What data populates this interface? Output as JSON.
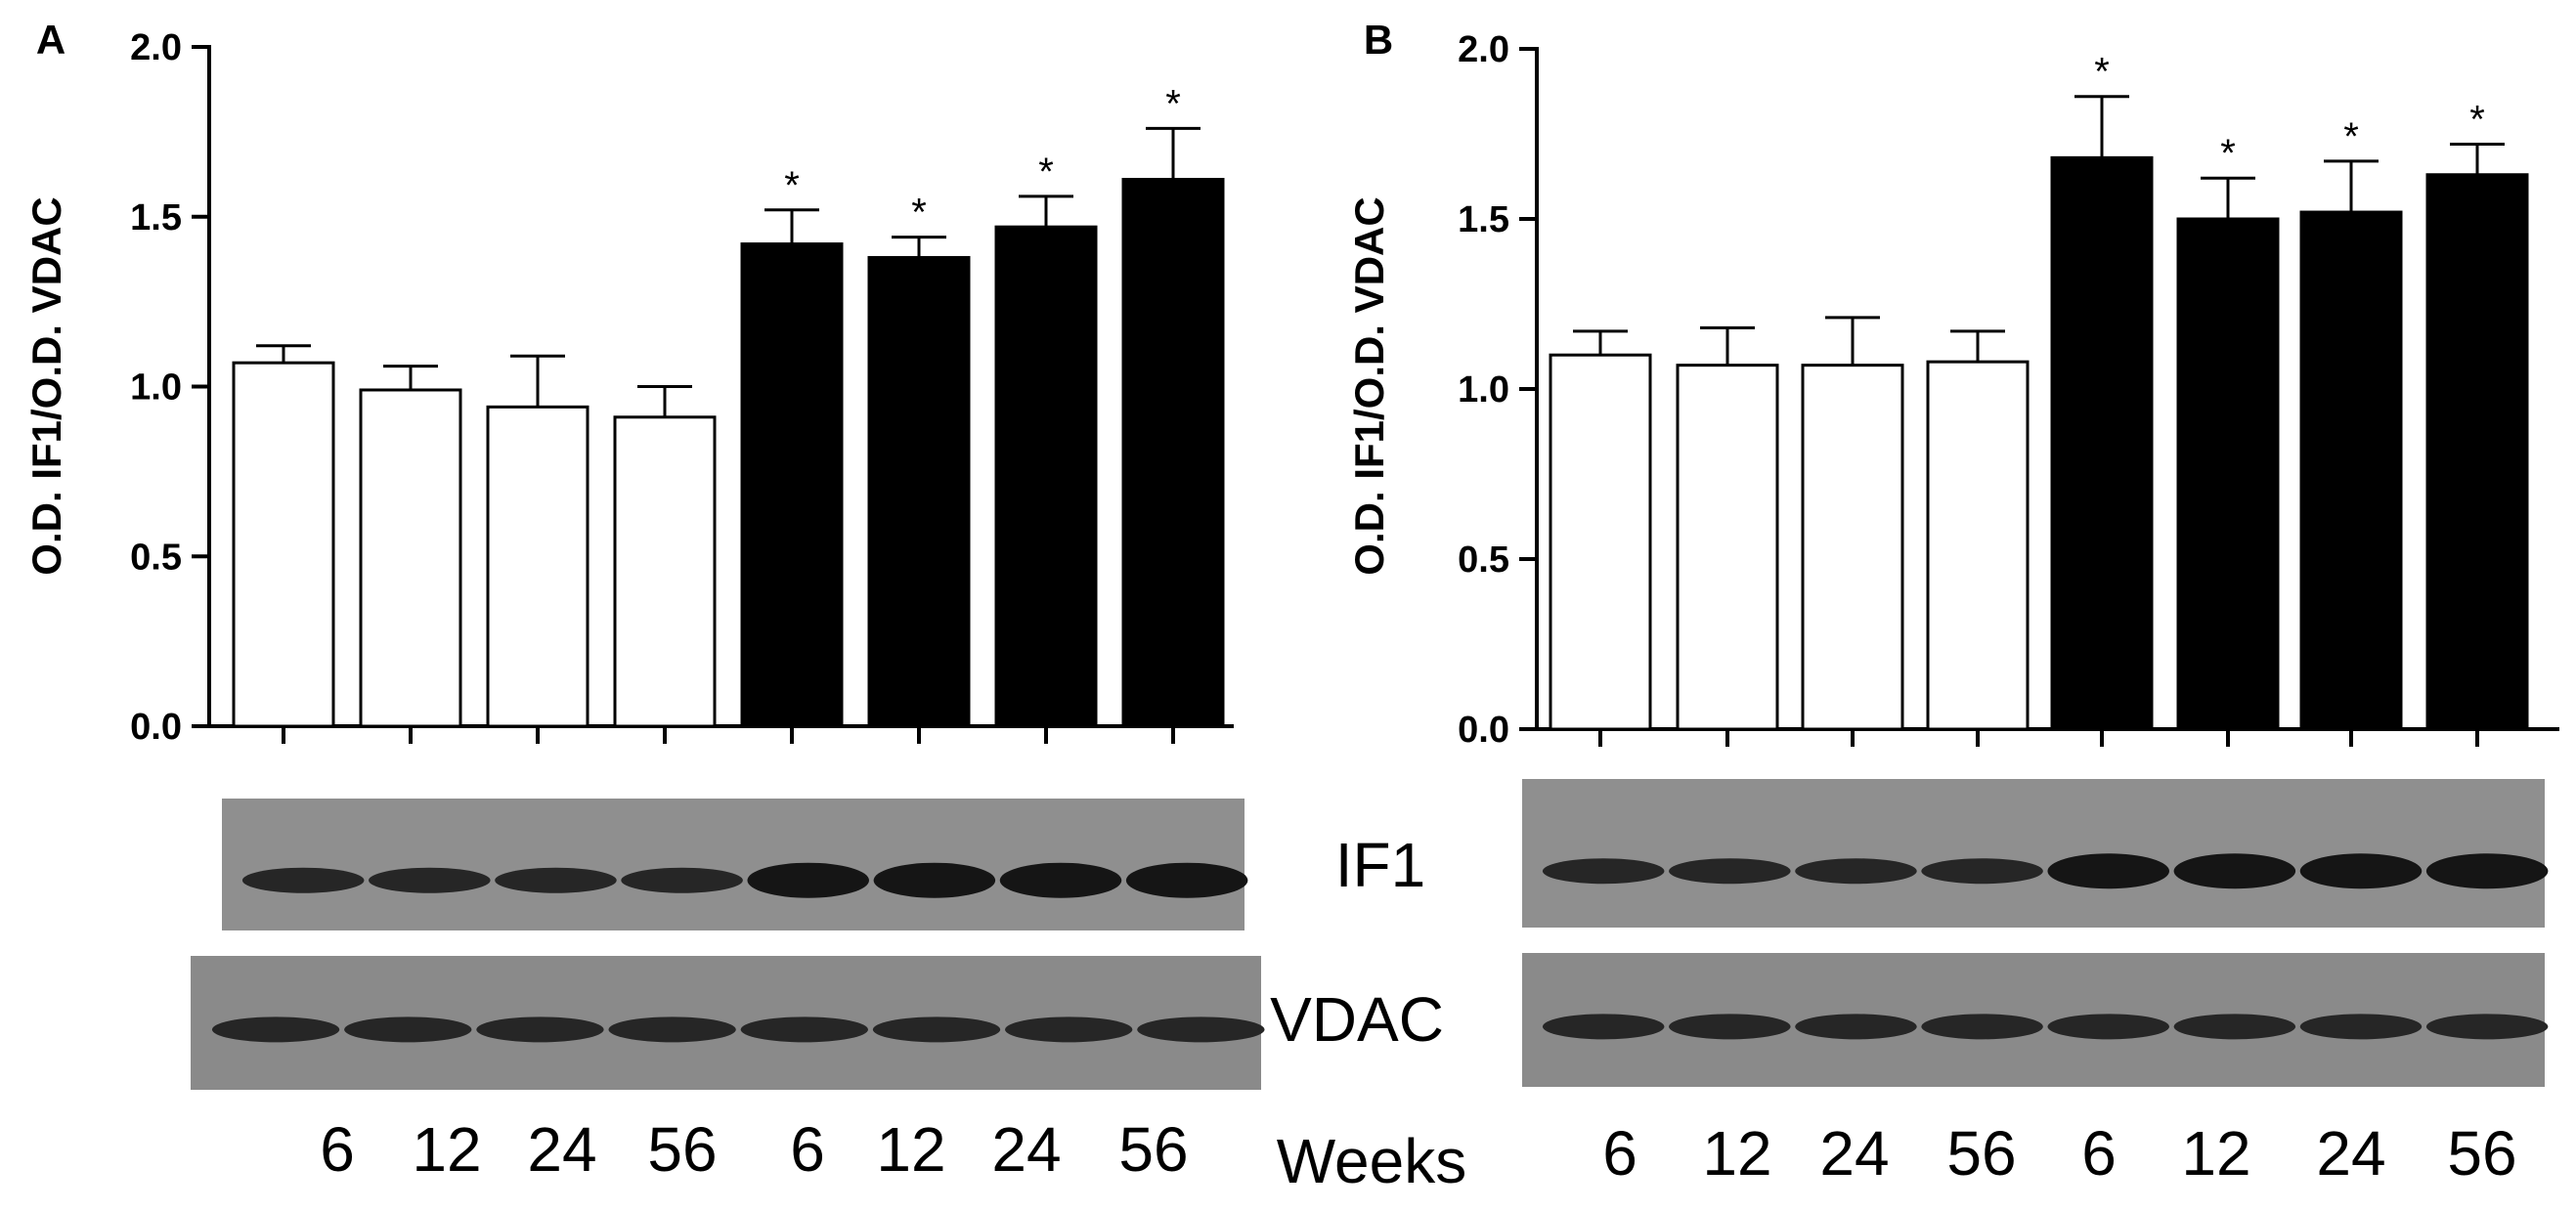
{
  "chart_data": [
    {
      "panel_label": "A",
      "type": "bar",
      "ylabel": "O.D. IF1/O.D. VDAC",
      "ylim": [
        0,
        2.0
      ],
      "yticks": [
        "0.0",
        "0.5",
        "1.0",
        "1.5",
        "2.0"
      ],
      "ytick_values": [
        0,
        0.5,
        1.0,
        1.5,
        2.0
      ],
      "categories": [
        "6",
        "12",
        "24",
        "56",
        "6",
        "12",
        "24",
        "56"
      ],
      "values": [
        1.07,
        0.99,
        0.94,
        0.91,
        1.42,
        1.38,
        1.47,
        1.61
      ],
      "error": [
        0.05,
        0.07,
        0.15,
        0.09,
        0.1,
        0.06,
        0.09,
        0.15
      ],
      "bar_fill": [
        "#ffffff",
        "#ffffff",
        "#ffffff",
        "#ffffff",
        "#000000",
        "#000000",
        "#000000",
        "#000000"
      ],
      "significance": [
        "",
        "",
        "",
        "",
        "*",
        "*",
        "*",
        "*"
      ],
      "blot_labels": [
        "IF1",
        "VDAC"
      ],
      "xlabel": "Weeks"
    },
    {
      "panel_label": "B",
      "type": "bar",
      "ylabel": "O.D. IF1/O.D. VDAC",
      "ylim": [
        0,
        2.0
      ],
      "yticks": [
        "0.0",
        "0.5",
        "1.0",
        "1.5",
        "2.0"
      ],
      "ytick_values": [
        0,
        0.5,
        1.0,
        1.5,
        2.0
      ],
      "categories": [
        "6",
        "12",
        "24",
        "56",
        "6",
        "12",
        "24",
        "56"
      ],
      "values": [
        1.1,
        1.07,
        1.07,
        1.08,
        1.68,
        1.5,
        1.52,
        1.63
      ],
      "error": [
        0.07,
        0.11,
        0.14,
        0.09,
        0.18,
        0.12,
        0.15,
        0.09
      ],
      "bar_fill": [
        "#ffffff",
        "#ffffff",
        "#ffffff",
        "#ffffff",
        "#000000",
        "#000000",
        "#000000",
        "#000000"
      ],
      "significance": [
        "",
        "",
        "",
        "",
        "*",
        "*",
        "*",
        "*"
      ]
    }
  ]
}
